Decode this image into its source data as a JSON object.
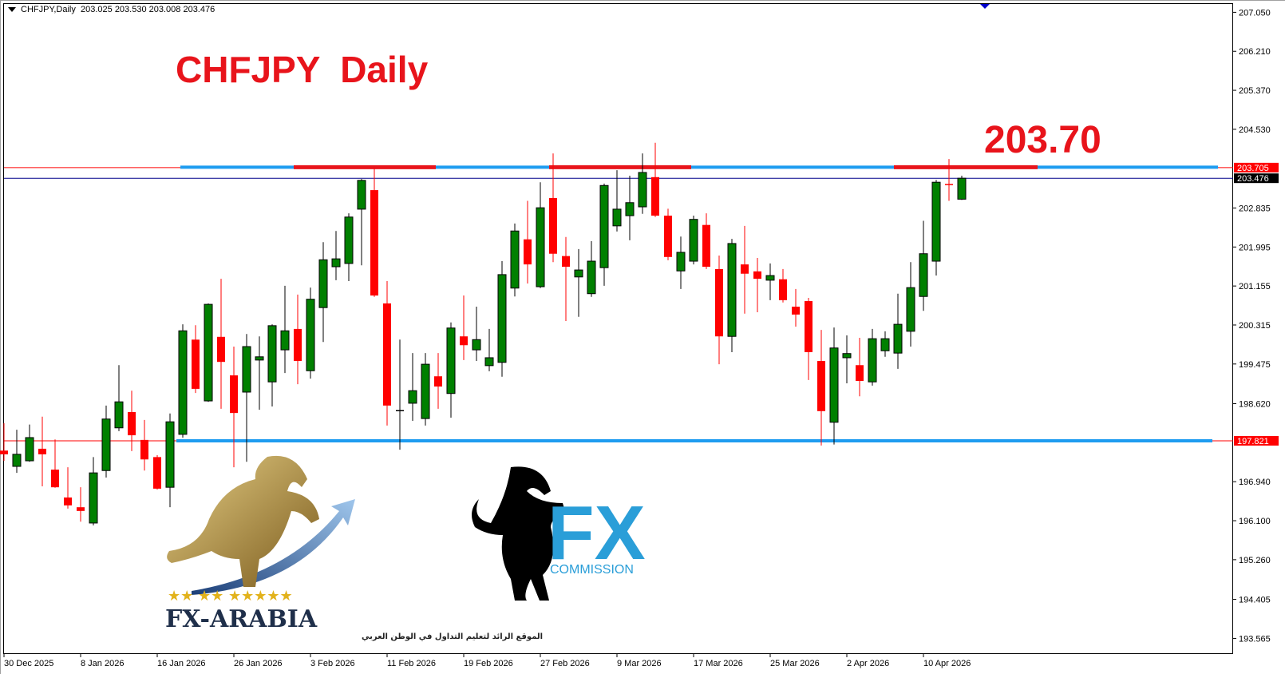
{
  "header": {
    "symbol_timeframe": "CHFJPY,Daily",
    "ohlc": "203.025 203.530 203.008 203.476"
  },
  "annotations": {
    "title": "CHFJPY  Daily",
    "resistance_label": "203.70"
  },
  "colors": {
    "bull": "#008000",
    "bear": "#ff0000",
    "level_line": "#1e9cf0",
    "level_highlight": "#e8141b",
    "bid_line": "#00008b"
  },
  "logos": {
    "fx_arabia": {
      "name": "FX-ARABIA",
      "tagline": "الموقع الرائد لتعليم التداول في الوطن العربي"
    },
    "fx_commission": {
      "mark": "FX",
      "word": "COMMISSION"
    }
  },
  "chart_data": {
    "type": "candlestick",
    "price_axis": {
      "ticks": [
        "207.050",
        "206.210",
        "205.370",
        "204.530",
        "202.835",
        "201.995",
        "201.155",
        "200.315",
        "199.475",
        "198.620",
        "196.940",
        "196.100",
        "195.260",
        "194.405",
        "193.565"
      ],
      "range": [
        193.565,
        207.05
      ]
    },
    "price_labels": [
      {
        "value": "203.705",
        "kind": "resistance",
        "color": "#ff0000"
      },
      {
        "value": "203.476",
        "kind": "bid",
        "color": "#000000"
      },
      {
        "value": "197.821",
        "kind": "support",
        "color": "#ff0000"
      }
    ],
    "levels": {
      "resistance": 203.705,
      "support": 197.821,
      "bid": 203.476
    },
    "date_labels": [
      "30 Dec 2025",
      "8 Jan 2026",
      "16 Jan 2026",
      "26 Jan 2026",
      "3 Feb 2026",
      "11 Feb 2026",
      "19 Feb 2026",
      "27 Feb 2026",
      "9 Mar 2026",
      "17 Mar 2026",
      "25 Mar 2026",
      "2 Apr 2026",
      "10 Apr 2026"
    ],
    "candles_ohlc": [
      [
        197.61,
        198.2,
        197.39,
        197.53
      ],
      [
        197.27,
        198.06,
        197.13,
        197.53
      ],
      [
        197.39,
        198.17,
        197.37,
        197.89
      ],
      [
        197.65,
        198.34,
        196.84,
        197.53
      ],
      [
        197.2,
        197.85,
        196.81,
        196.82
      ],
      [
        196.6,
        197.25,
        196.36,
        196.43
      ],
      [
        196.39,
        196.82,
        196.08,
        196.31
      ],
      [
        196.05,
        197.47,
        196.0,
        197.13
      ],
      [
        197.18,
        198.58,
        197.03,
        198.29
      ],
      [
        198.1,
        199.45,
        198.03,
        198.66
      ],
      [
        198.44,
        198.9,
        197.6,
        197.94
      ],
      [
        197.84,
        198.27,
        197.18,
        197.42
      ],
      [
        197.47,
        197.51,
        196.77,
        196.79
      ],
      [
        196.82,
        198.41,
        196.39,
        198.23
      ],
      [
        197.96,
        200.33,
        197.89,
        200.19
      ],
      [
        200.0,
        200.31,
        198.85,
        198.94
      ],
      [
        198.68,
        200.78,
        198.66,
        200.76
      ],
      [
        200.06,
        201.31,
        198.51,
        199.52
      ],
      [
        199.23,
        199.85,
        197.25,
        198.42
      ],
      [
        198.87,
        200.12,
        197.37,
        199.85
      ],
      [
        199.56,
        200.07,
        198.49,
        199.63
      ],
      [
        199.09,
        200.33,
        198.56,
        200.3
      ],
      [
        199.78,
        201.16,
        199.28,
        200.19
      ],
      [
        200.23,
        200.97,
        199.04,
        199.54
      ],
      [
        199.33,
        201.12,
        199.16,
        200.87
      ],
      [
        200.69,
        202.1,
        199.95,
        201.72
      ],
      [
        201.57,
        202.34,
        201.28,
        201.74
      ],
      [
        201.64,
        202.72,
        201.26,
        202.64
      ],
      [
        202.81,
        203.46,
        201.6,
        203.43
      ],
      [
        203.22,
        203.69,
        200.92,
        200.95
      ],
      [
        200.78,
        201.26,
        198.15,
        198.58
      ],
      [
        198.46,
        200.0,
        197.63,
        198.47
      ],
      [
        198.63,
        199.71,
        198.25,
        198.9
      ],
      [
        198.3,
        199.71,
        198.15,
        199.47
      ],
      [
        199.21,
        199.71,
        198.51,
        198.99
      ],
      [
        198.84,
        200.37,
        198.32,
        200.25
      ],
      [
        200.07,
        200.95,
        199.56,
        199.88
      ],
      [
        199.78,
        200.71,
        199.54,
        200.0
      ],
      [
        199.44,
        200.23,
        199.32,
        199.61
      ],
      [
        199.51,
        201.69,
        199.2,
        201.4
      ],
      [
        201.11,
        202.5,
        200.93,
        202.34
      ],
      [
        202.16,
        202.99,
        201.21,
        201.62
      ],
      [
        201.14,
        203.39,
        201.11,
        202.84
      ],
      [
        203.05,
        204.01,
        201.67,
        201.85
      ],
      [
        201.8,
        202.21,
        200.4,
        201.57
      ],
      [
        201.35,
        201.95,
        200.49,
        201.5
      ],
      [
        200.99,
        202.12,
        200.92,
        201.69
      ],
      [
        201.55,
        203.36,
        201.16,
        203.32
      ],
      [
        202.45,
        203.65,
        202.33,
        202.81
      ],
      [
        202.67,
        203.53,
        202.14,
        202.95
      ],
      [
        202.86,
        204.01,
        202.71,
        203.6
      ],
      [
        203.5,
        204.24,
        202.64,
        202.67
      ],
      [
        202.67,
        202.82,
        201.71,
        201.78
      ],
      [
        201.48,
        202.22,
        201.09,
        201.88
      ],
      [
        201.69,
        202.67,
        201.62,
        202.59
      ],
      [
        202.47,
        202.72,
        201.52,
        201.57
      ],
      [
        201.52,
        201.81,
        199.47,
        200.07
      ],
      [
        200.07,
        202.17,
        199.73,
        202.07
      ],
      [
        201.62,
        202.45,
        200.56,
        201.42
      ],
      [
        201.47,
        201.76,
        200.59,
        201.31
      ],
      [
        201.28,
        201.64,
        200.85,
        201.38
      ],
      [
        201.3,
        201.52,
        200.8,
        200.85
      ],
      [
        200.71,
        201.09,
        200.28,
        200.54
      ],
      [
        200.83,
        200.9,
        199.13,
        199.73
      ],
      [
        199.54,
        200.21,
        197.72,
        198.46
      ],
      [
        198.22,
        200.26,
        197.74,
        199.82
      ],
      [
        199.61,
        200.09,
        199.06,
        199.7
      ],
      [
        199.45,
        200.04,
        198.78,
        199.11
      ],
      [
        199.09,
        200.23,
        199.01,
        200.02
      ],
      [
        199.76,
        200.18,
        199.63,
        200.02
      ],
      [
        199.71,
        200.99,
        199.37,
        200.33
      ],
      [
        200.18,
        201.67,
        199.85,
        201.12
      ],
      [
        200.93,
        202.56,
        200.62,
        201.85
      ],
      [
        201.69,
        203.44,
        201.38,
        203.39
      ],
      [
        203.34,
        203.89,
        202.99,
        203.32
      ],
      [
        203.025,
        203.53,
        203.008,
        203.476
      ]
    ]
  }
}
